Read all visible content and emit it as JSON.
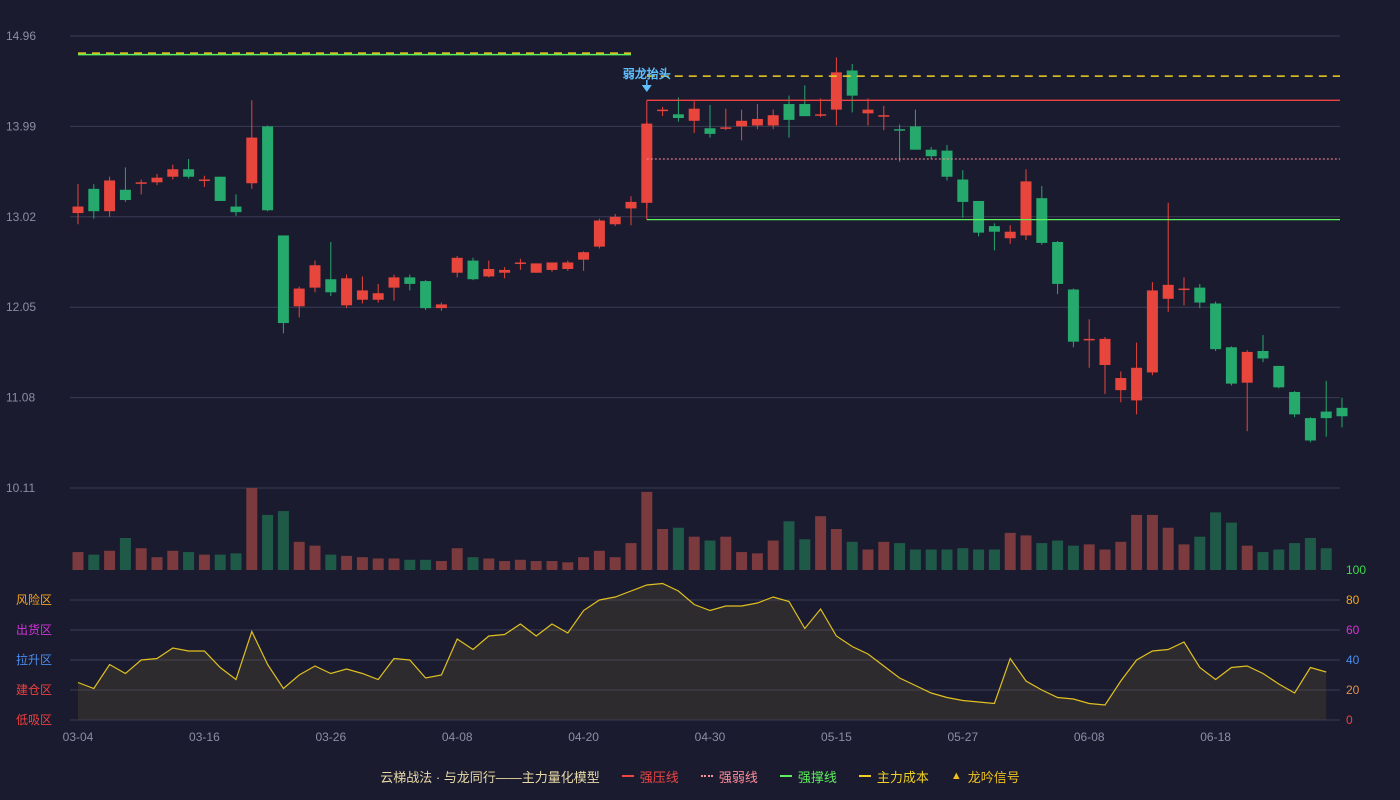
{
  "chart_data": {
    "type": "candlestick",
    "x_ticks": [
      "03-04",
      "03-16",
      "03-26",
      "04-08",
      "04-20",
      "04-30",
      "05-15",
      "05-27",
      "06-08",
      "06-18"
    ],
    "x_tick_index": [
      0,
      8,
      16,
      24,
      32,
      40,
      48,
      56,
      64,
      72
    ],
    "y_ticks": [
      "14.96",
      "13.99",
      "13.02",
      "12.05",
      "11.08",
      "10.11"
    ],
    "ylim": [
      10.11,
      14.96
    ],
    "candles": [
      [
        13.06,
        13.13,
        13.37,
        12.94
      ],
      [
        13.32,
        13.08,
        13.37,
        13.0
      ],
      [
        13.08,
        13.41,
        13.45,
        13.02
      ],
      [
        13.31,
        13.2,
        13.55,
        13.18
      ],
      [
        13.39,
        13.39,
        13.42,
        13.26
      ],
      [
        13.39,
        13.44,
        13.48,
        13.36
      ],
      [
        13.45,
        13.53,
        13.58,
        13.42
      ],
      [
        13.53,
        13.45,
        13.64,
        13.43
      ],
      [
        13.42,
        13.42,
        13.46,
        13.34
      ],
      [
        13.45,
        13.19,
        13.45,
        13.19
      ],
      [
        13.13,
        13.07,
        13.26,
        13.03
      ],
      [
        13.38,
        13.87,
        14.27,
        13.32
      ],
      [
        13.99,
        13.09,
        14.0,
        13.08
      ],
      [
        12.82,
        11.88,
        12.82,
        11.77
      ],
      [
        12.06,
        12.25,
        12.27,
        11.94
      ],
      [
        12.26,
        12.5,
        12.55,
        12.21
      ],
      [
        12.35,
        12.21,
        12.75,
        12.17
      ],
      [
        12.07,
        12.36,
        12.4,
        12.04
      ],
      [
        12.13,
        12.23,
        12.38,
        12.09
      ],
      [
        12.13,
        12.2,
        12.3,
        12.1
      ],
      [
        12.26,
        12.37,
        12.4,
        12.12
      ],
      [
        12.37,
        12.3,
        12.4,
        12.23
      ],
      [
        12.33,
        12.04,
        12.34,
        12.02
      ],
      [
        12.04,
        12.08,
        12.1,
        12.01
      ],
      [
        12.42,
        12.58,
        12.6,
        12.37
      ],
      [
        12.55,
        12.35,
        12.58,
        12.34
      ],
      [
        12.38,
        12.46,
        12.55,
        12.37
      ],
      [
        12.42,
        12.45,
        12.48,
        12.36
      ],
      [
        12.53,
        12.53,
        12.57,
        12.45
      ],
      [
        12.42,
        12.52,
        12.52,
        12.42
      ],
      [
        12.45,
        12.53,
        12.53,
        12.43
      ],
      [
        12.46,
        12.53,
        12.55,
        12.44
      ],
      [
        12.56,
        12.64,
        12.65,
        12.44
      ],
      [
        12.7,
        12.98,
        13.0,
        12.68
      ],
      [
        12.94,
        13.02,
        13.05,
        12.92
      ],
      [
        13.11,
        13.18,
        13.24,
        12.93
      ],
      [
        13.17,
        14.02,
        14.04,
        13.11
      ],
      [
        14.16,
        14.17,
        14.2,
        14.1
      ],
      [
        14.12,
        14.08,
        14.3,
        14.04
      ],
      [
        14.05,
        14.18,
        14.26,
        13.92
      ],
      [
        13.97,
        13.91,
        14.22,
        13.87
      ],
      [
        13.98,
        13.98,
        14.18,
        13.95
      ],
      [
        13.99,
        14.05,
        14.17,
        13.84
      ],
      [
        14.0,
        14.07,
        14.23,
        13.96
      ],
      [
        14.0,
        14.11,
        14.17,
        13.96
      ],
      [
        14.23,
        14.06,
        14.32,
        13.87
      ],
      [
        14.23,
        14.1,
        14.43,
        14.13
      ],
      [
        14.11,
        14.12,
        14.29,
        14.09
      ],
      [
        14.17,
        14.57,
        14.73,
        14.0
      ],
      [
        14.59,
        14.32,
        14.66,
        14.14
      ],
      [
        14.13,
        14.17,
        14.29,
        14.0
      ],
      [
        14.1,
        14.11,
        14.21,
        13.95
      ],
      [
        13.96,
        13.95,
        14.01,
        13.61
      ],
      [
        13.99,
        13.74,
        14.17,
        13.74
      ],
      [
        13.74,
        13.67,
        13.77,
        13.64
      ],
      [
        13.73,
        13.45,
        13.79,
        13.41
      ],
      [
        13.42,
        13.18,
        13.52,
        13.01
      ],
      [
        13.19,
        12.85,
        13.19,
        12.81
      ],
      [
        12.92,
        12.86,
        12.95,
        12.66
      ],
      [
        12.79,
        12.86,
        12.93,
        12.73
      ],
      [
        12.82,
        13.4,
        13.53,
        12.77
      ],
      [
        13.22,
        12.74,
        13.35,
        12.72
      ],
      [
        12.75,
        12.3,
        12.76,
        12.19
      ],
      [
        12.24,
        11.68,
        12.25,
        11.62
      ],
      [
        11.7,
        11.71,
        11.92,
        11.4
      ],
      [
        11.43,
        11.71,
        11.73,
        11.12
      ],
      [
        11.16,
        11.29,
        11.36,
        11.03
      ],
      [
        11.05,
        11.4,
        11.67,
        10.9
      ],
      [
        11.35,
        12.23,
        12.32,
        11.32
      ],
      [
        12.14,
        12.29,
        13.17,
        12.0
      ],
      [
        12.24,
        12.25,
        12.37,
        12.07
      ],
      [
        12.26,
        12.1,
        12.3,
        12.04
      ],
      [
        12.09,
        11.6,
        12.11,
        11.58
      ],
      [
        11.62,
        11.23,
        11.63,
        11.21
      ],
      [
        11.24,
        11.57,
        11.59,
        10.72
      ],
      [
        11.58,
        11.5,
        11.75,
        11.46
      ],
      [
        11.42,
        11.19,
        11.42,
        11.18
      ],
      [
        11.14,
        10.9,
        11.15,
        10.87
      ],
      [
        10.86,
        10.62,
        10.87,
        10.6
      ],
      [
        10.93,
        10.86,
        11.26,
        10.66
      ],
      [
        10.97,
        10.88,
        11.08,
        10.76
      ]
    ],
    "volume": [
      14,
      12,
      15,
      25,
      17,
      10,
      15,
      14,
      12,
      12,
      13,
      64,
      43,
      46,
      22,
      19,
      12,
      11,
      10,
      9,
      9,
      8,
      8,
      7,
      17,
      10,
      9,
      7,
      8,
      7,
      7,
      6,
      10,
      15,
      10,
      21,
      61,
      32,
      33,
      26,
      23,
      26,
      14,
      13,
      23,
      38,
      24,
      42,
      32,
      22,
      16,
      22,
      21,
      16,
      16,
      16,
      17,
      16,
      16,
      29,
      27,
      21,
      23,
      19,
      20,
      16,
      22,
      43,
      43,
      33,
      20,
      26,
      45,
      37,
      19,
      14,
      16,
      21,
      25,
      17
    ],
    "oscillator": {
      "values": [
        25,
        21,
        37,
        31,
        40,
        41,
        48,
        46,
        46,
        35,
        27,
        59,
        37,
        21,
        30,
        36,
        31,
        34,
        31,
        27,
        41,
        40,
        28,
        30,
        54,
        47,
        56,
        57,
        64,
        56,
        64,
        58,
        73,
        80,
        82,
        86,
        90,
        91,
        86,
        77,
        73,
        76,
        76,
        78,
        82,
        79,
        61,
        74,
        56,
        49,
        44,
        36,
        28,
        23,
        18,
        15,
        13,
        12,
        11,
        41,
        26,
        20,
        15,
        14,
        11,
        10,
        26,
        40,
        46,
        47,
        52,
        35,
        27,
        35,
        36,
        31,
        24,
        18,
        35,
        32
      ],
      "ylim": [
        0,
        100
      ],
      "right_ticks": [
        "100",
        "80",
        "60",
        "40",
        "20",
        "0"
      ],
      "right_tick_colors": [
        "#3bdc4a",
        "#f5a623",
        "#d433d9",
        "#4a8df0",
        "#e09050",
        "#ee4040"
      ],
      "zones": [
        "风险区",
        "出货区",
        "拉升区",
        "建仓区",
        "低吸区"
      ],
      "zone_colors": [
        "#f5a623",
        "#d433d9",
        "#4a8df0",
        "#ee4040",
        "#ee4040"
      ]
    },
    "lines": {
      "strong_pressure": {
        "value": 14.27,
        "start_index": 36
      },
      "strong_weak": {
        "value": 13.64,
        "start_index": 36
      },
      "strong_support": {
        "value": 12.99,
        "start_index": 36
      },
      "main_cost_upper": {
        "value": 14.53,
        "start_index": 36
      },
      "main_cost_left": {
        "value": 14.76,
        "end_index": 35
      }
    },
    "annotation": {
      "text": "弱龙抬头",
      "index": 36
    },
    "legend": {
      "title": "云梯战法 · 与龙同行——主力量化模型",
      "items": [
        {
          "label": "强压线",
          "color": "#ee4444",
          "style": "solid"
        },
        {
          "label": "强弱线",
          "color": "#ff8c9b",
          "style": "dotted"
        },
        {
          "label": "强撑线",
          "color": "#5cf05c",
          "style": "solid"
        },
        {
          "label": "主力成本",
          "color": "#f0d020",
          "style": "dashed"
        },
        {
          "label": "龙吟信号",
          "color": "#f0c020",
          "style": "triangle"
        }
      ]
    },
    "colors": {
      "up": "#e8453c",
      "down": "#26a96c",
      "grid": "#3a3d55",
      "axis_text": "#8a8ea6",
      "osc_line": "#e0c020",
      "annotation": "#60c0ff"
    }
  }
}
